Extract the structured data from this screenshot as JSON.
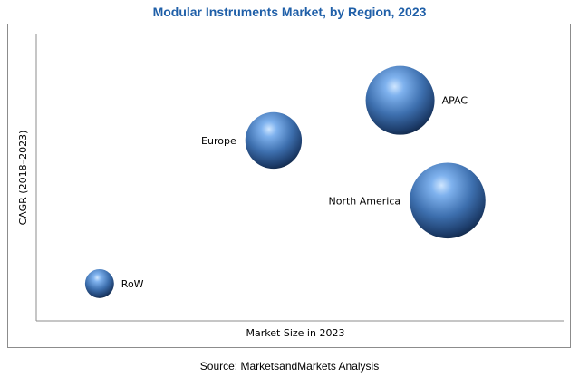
{
  "chart_data": {
    "type": "bubble",
    "title": "Modular Instruments Market, by Region, 2023",
    "xlabel": "Market Size in 2023",
    "ylabel": "CAGR (2018–2023)",
    "xlim": [
      0,
      100
    ],
    "ylim": [
      0,
      100
    ],
    "axis_ticks": "none",
    "grid": false,
    "points": [
      {
        "label": "APAC",
        "x": 69,
        "y": 77,
        "size": 1.0
      },
      {
        "label": "Europe",
        "x": 45,
        "y": 63,
        "size": 0.82
      },
      {
        "label": "North America",
        "x": 78,
        "y": 42,
        "size": 1.1
      },
      {
        "label": "RoW",
        "x": 12,
        "y": 13,
        "size": 0.42
      }
    ],
    "bubble_color": "#3d6fae"
  },
  "source": "Source: MarketsandMarkets Analysis"
}
